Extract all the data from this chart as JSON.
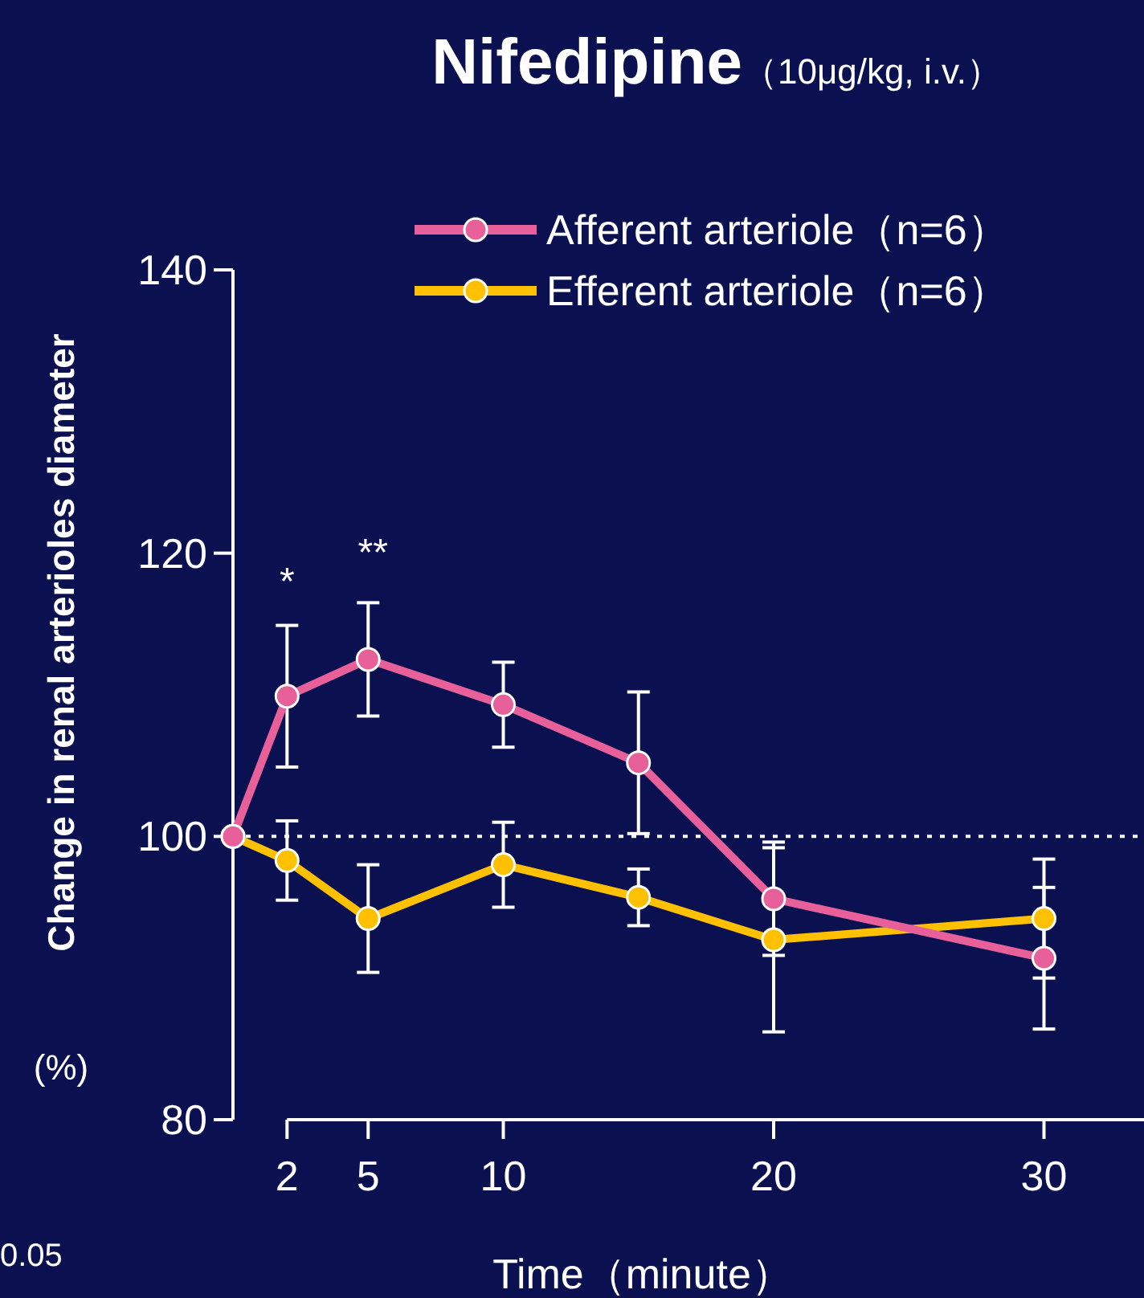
{
  "chart_data": {
    "type": "line",
    "title": "Nifedipine",
    "subtitle": "（10μg/kg, i.v.）",
    "xlabel": "Time（minute）",
    "ylabel": "Change in renal arterioles diameter",
    "x": [
      0,
      2,
      5,
      10,
      15,
      20,
      30
    ],
    "series": [
      {
        "name": "Afferent arteriole（n=6）",
        "color": "#e8609a",
        "values": [
          100,
          109.9,
          112.5,
          109.3,
          105.2,
          95.6,
          91.4
        ],
        "errors": [
          null,
          5,
          4,
          3,
          5,
          4,
          5
        ]
      },
      {
        "name": "Efferent arteriole（n=6）",
        "color": "#ffc000",
        "values": [
          100,
          98.3,
          94.2,
          98.0,
          95.7,
          92.7,
          94.2
        ],
        "errors": [
          null,
          2.8,
          3.8,
          3,
          2,
          6.5,
          4.2
        ]
      }
    ],
    "xlim": [
      0,
      33.7
    ],
    "xticks": [
      2,
      5,
      10,
      20,
      30
    ],
    "ylim": [
      80,
      140
    ],
    "yticks": [
      80,
      100,
      120,
      140
    ],
    "ref_lines": [
      {
        "axis": "y",
        "value": 100,
        "color": "#ffffff",
        "line_style": "dotted"
      }
    ],
    "annotations": [
      "*",
      "**",
      "(%)",
      "0.05"
    ],
    "legend": "top right",
    "marker": "circle",
    "line_style": "solid",
    "grid": false
  }
}
